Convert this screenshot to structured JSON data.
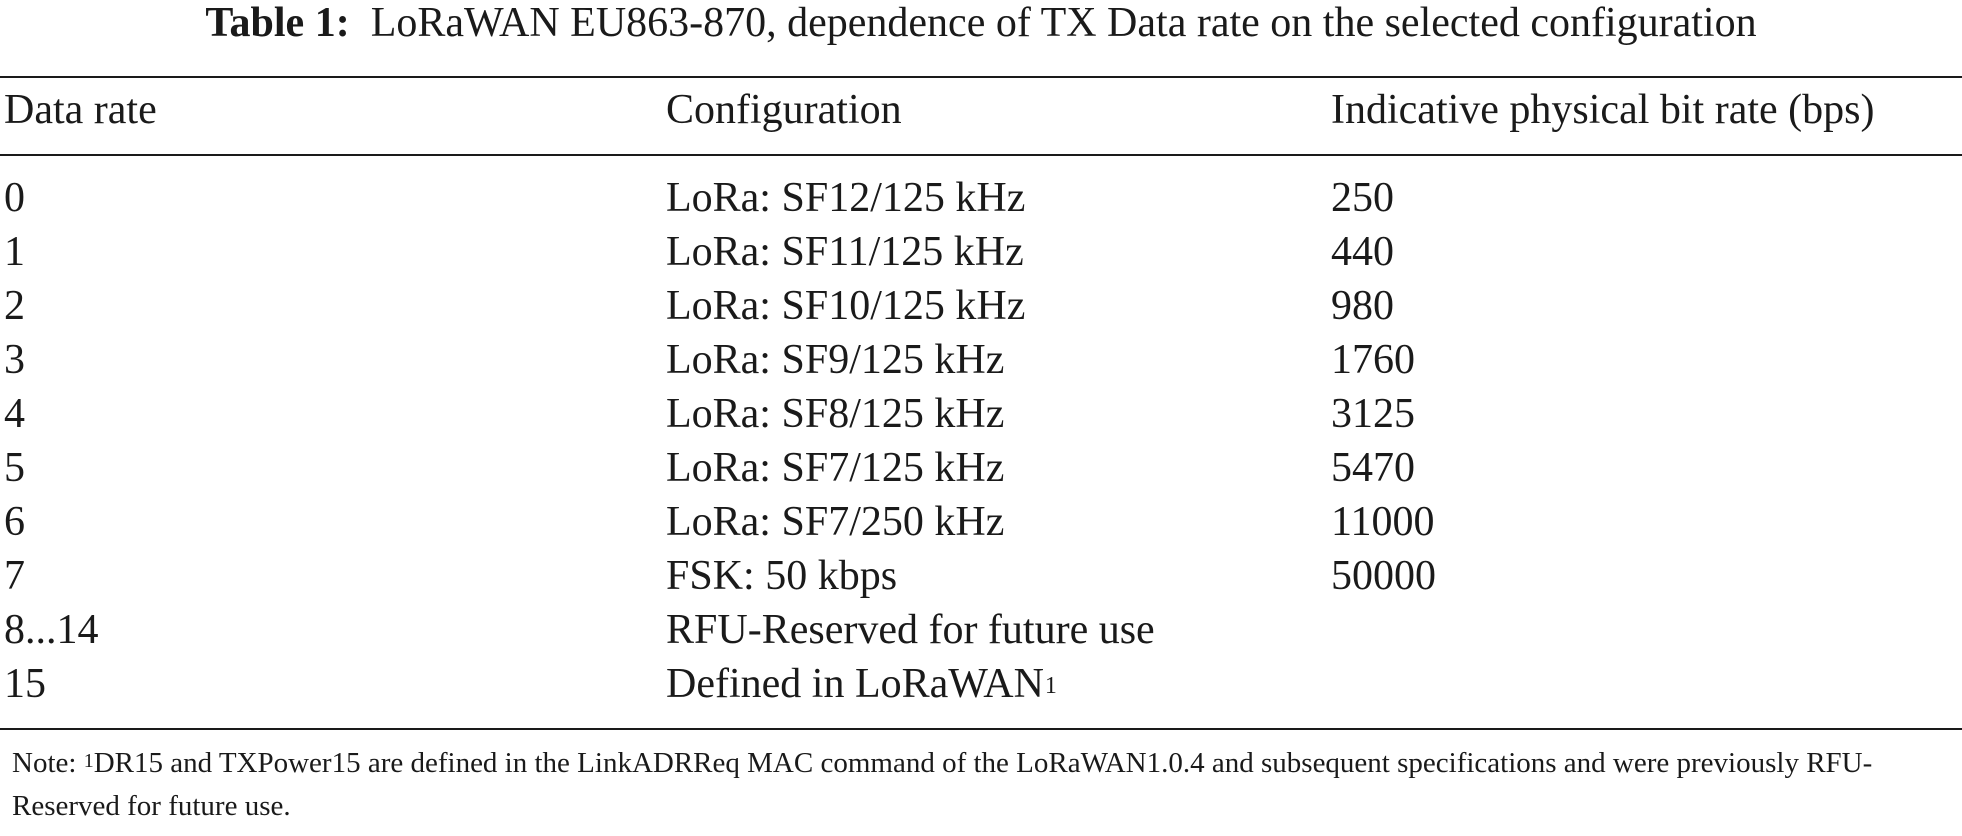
{
  "caption": {
    "label": "Table 1:",
    "text": "LoRaWAN EU863-870, dependence of TX Data rate on the selected configuration"
  },
  "table": {
    "headers": [
      "Data rate",
      "Configuration",
      "Indicative physical bit rate (bps)"
    ],
    "rows": [
      {
        "data_rate": "0",
        "configuration": "LoRa: SF12/125 kHz",
        "bit_rate": "250"
      },
      {
        "data_rate": "1",
        "configuration": "LoRa: SF11/125 kHz",
        "bit_rate": "440"
      },
      {
        "data_rate": "2",
        "configuration": "LoRa: SF10/125 kHz",
        "bit_rate": "980"
      },
      {
        "data_rate": "3",
        "configuration": "LoRa: SF9/125 kHz",
        "bit_rate": "1760"
      },
      {
        "data_rate": "4",
        "configuration": "LoRa: SF8/125 kHz",
        "bit_rate": "3125"
      },
      {
        "data_rate": "5",
        "configuration": "LoRa: SF7/125 kHz",
        "bit_rate": "5470"
      },
      {
        "data_rate": "6",
        "configuration": "LoRa: SF7/250 kHz",
        "bit_rate": "11000"
      },
      {
        "data_rate": "7",
        "configuration": "FSK: 50 kbps",
        "bit_rate": "50000"
      },
      {
        "data_rate": "8...14",
        "configuration": "RFU-Reserved for future use",
        "bit_rate": ""
      },
      {
        "data_rate": "15",
        "configuration": "Defined in LoRaWAN",
        "configuration_sup": "1",
        "bit_rate": ""
      }
    ]
  },
  "note": {
    "prefix": "Note: ",
    "sup": "1",
    "text": "DR15 and TXPower15 are defined in the LinkADRReq MAC command of the LoRaWAN1.0.4 and subsequent specifications and were previously RFU-Reserved for future use."
  }
}
